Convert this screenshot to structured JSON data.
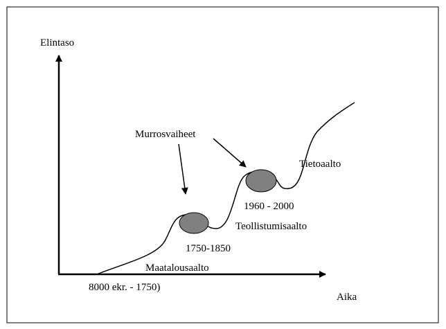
{
  "axes": {
    "y_label": "Elintaso",
    "x_label": "Aika"
  },
  "annotations": {
    "transitions": "Murrosvaiheet",
    "wave3": "Tietoaalto",
    "wave2_period": "1960 - 2000",
    "wave2": "Teollistumisaalto",
    "wave1_transition": "1750-1850",
    "wave1": "Maatalousaalto",
    "wave1_period": "8000 ekr. - 1750)"
  }
}
